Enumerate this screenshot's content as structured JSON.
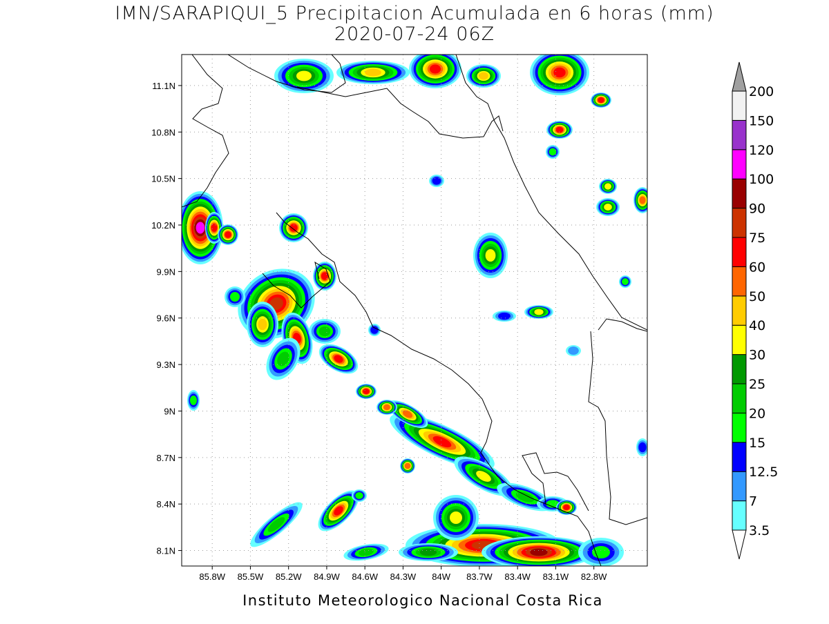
{
  "header": {
    "title": "IMN/SARAPIQUI_5 Precipitacion Acumulada en 6 horas (mm)",
    "subtitle": "2020-07-24 06Z"
  },
  "map": {
    "xlim": [
      -86.04,
      -82.38
    ],
    "ylim": [
      8.0,
      11.3
    ],
    "xticks": [
      {
        "value": -85.8,
        "label": "85.8W"
      },
      {
        "value": -85.5,
        "label": "85.5W"
      },
      {
        "value": -85.2,
        "label": "85.2W"
      },
      {
        "value": -84.9,
        "label": "84.9W"
      },
      {
        "value": -84.6,
        "label": "84.6W"
      },
      {
        "value": -84.3,
        "label": "84.3W"
      },
      {
        "value": -84.0,
        "label": "84W"
      },
      {
        "value": -83.7,
        "label": "83.7W"
      },
      {
        "value": -83.4,
        "label": "83.4W"
      },
      {
        "value": -83.1,
        "label": "83.1W"
      },
      {
        "value": -82.8,
        "label": "82.8W"
      }
    ],
    "yticks": [
      {
        "value": 8.1,
        "label": "8.1N"
      },
      {
        "value": 8.4,
        "label": "8.4N"
      },
      {
        "value": 8.7,
        "label": "8.7N"
      },
      {
        "value": 9.0,
        "label": "9N"
      },
      {
        "value": 9.3,
        "label": "9.3N"
      },
      {
        "value": 9.6,
        "label": "9.6N"
      },
      {
        "value": 9.9,
        "label": "9.9N"
      },
      {
        "value": 10.2,
        "label": "10.2N"
      },
      {
        "value": 10.5,
        "label": "10.5N"
      },
      {
        "value": 10.8,
        "label": "10.8N"
      },
      {
        "value": 11.1,
        "label": "11.1N"
      }
    ],
    "grid": true
  },
  "colorbar": {
    "levels": [
      3.5,
      7,
      12.5,
      15,
      20,
      25,
      30,
      40,
      50,
      60,
      75,
      90,
      100,
      120,
      150,
      200
    ],
    "colors": [
      "#66ffff",
      "#3399ff",
      "#0000ff",
      "#00ff00",
      "#00cc00",
      "#009900",
      "#ffff00",
      "#ffcc00",
      "#ff6600",
      "#ff0000",
      "#cc3300",
      "#990000",
      "#ff00ff",
      "#9933cc",
      "#f2f2f2"
    ],
    "below_color": "#ffffff",
    "above_color": "#a0a0a0"
  },
  "footer": "Instituto Meteorologico Nacional Costa Rica"
}
